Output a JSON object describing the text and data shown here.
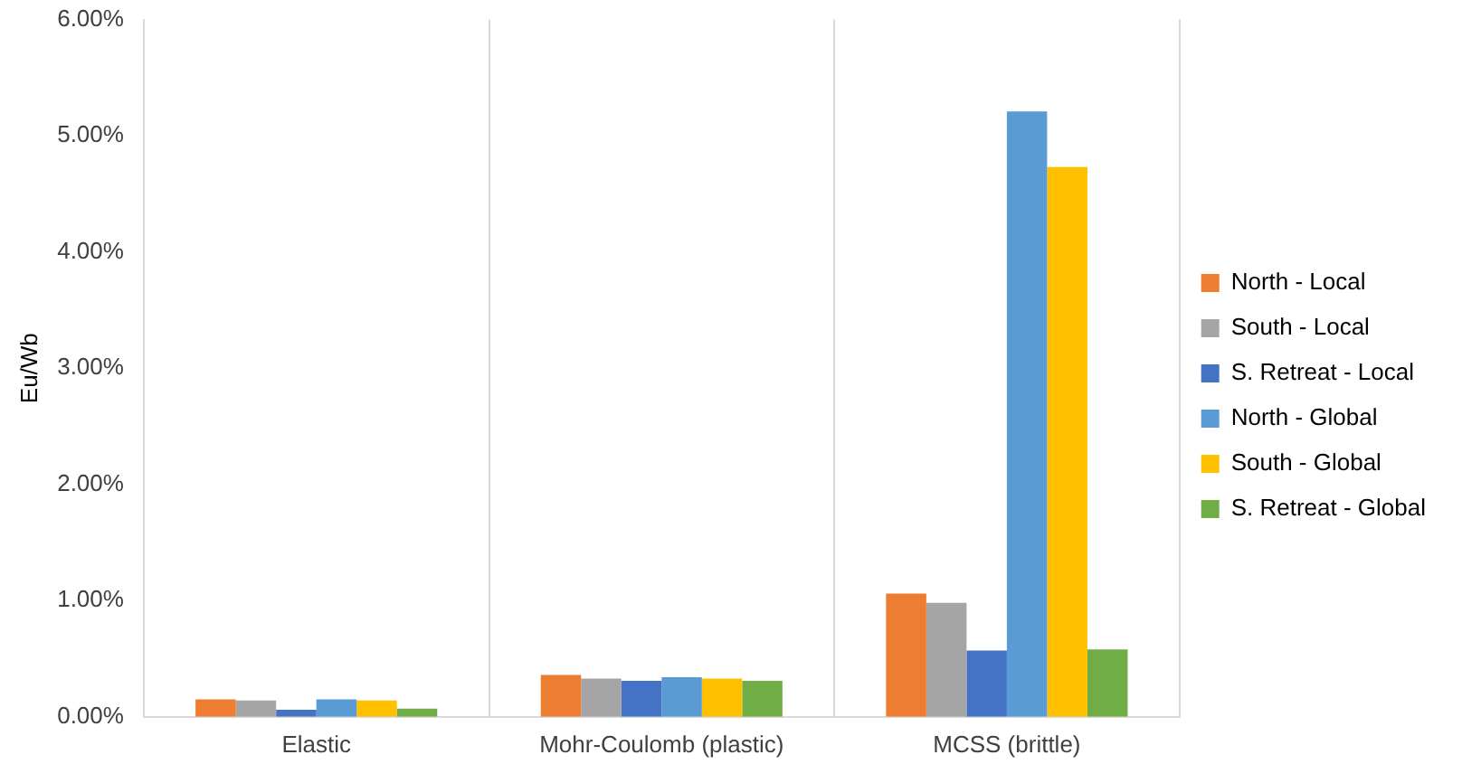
{
  "chart_data": {
    "type": "bar",
    "ylabel": "Eu/Wb",
    "categories": [
      "Elastic",
      "Mohr-Coulomb (plastic)",
      "MCSS (brittle)"
    ],
    "series": [
      {
        "name": "North - Local",
        "color": "#ed7d31",
        "values": [
          0.15,
          0.36,
          1.06
        ]
      },
      {
        "name": "South - Local",
        "color": "#a5a5a5",
        "values": [
          0.14,
          0.33,
          0.98
        ]
      },
      {
        "name": "S. Retreat - Local",
        "color": "#4472c4",
        "values": [
          0.06,
          0.31,
          0.57
        ]
      },
      {
        "name": "North - Global",
        "color": "#5b9bd5",
        "values": [
          0.15,
          0.34,
          5.21
        ]
      },
      {
        "name": "South - Global",
        "color": "#ffc000",
        "values": [
          0.14,
          0.33,
          4.73
        ]
      },
      {
        "name": "S. Retreat - Global",
        "color": "#70ad47",
        "values": [
          0.07,
          0.31,
          0.58
        ]
      }
    ],
    "ylim": [
      0,
      6
    ],
    "yticks": [
      {
        "value": 0,
        "label": "0.00%"
      },
      {
        "value": 1,
        "label": "1.00%"
      },
      {
        "value": 2,
        "label": "2.00%"
      },
      {
        "value": 3,
        "label": "3.00%"
      },
      {
        "value": 4,
        "label": "4.00%"
      },
      {
        "value": 5,
        "label": "5.00%"
      },
      {
        "value": 6,
        "label": "6.00%"
      }
    ],
    "grid": "x",
    "legend": "right"
  }
}
